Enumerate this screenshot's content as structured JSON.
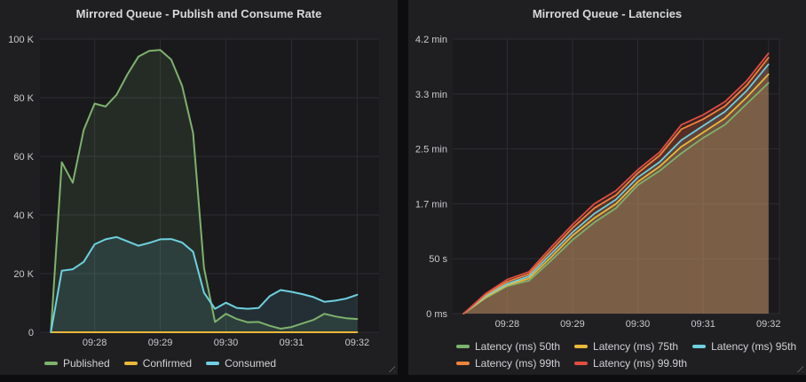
{
  "dashboard": {
    "panels": [
      {
        "title": "Mirrored Queue - Publish and Consume Rate"
      },
      {
        "title": "Mirrored Queue - Latencies"
      }
    ],
    "colors": {
      "green": "#7EB26D",
      "yellow": "#EAB839",
      "cyan": "#6ED0E0",
      "orange": "#EF843C",
      "red": "#E24D42",
      "panel_bg": "#1f1f22",
      "plot_bg": "#1a1a1d",
      "grid": "#2d2d32",
      "text": "#c9cacc"
    }
  },
  "chart_data": [
    {
      "type": "area",
      "title": "Mirrored Queue - Publish and Consume Rate",
      "xlabel": "",
      "ylabel": "",
      "unit": "messages/s",
      "legend_position": "bottom",
      "grid": true,
      "time_origin": "09:27:10",
      "time_domain_s": [
        0,
        310
      ],
      "x_tick_s": [
        50,
        110,
        170,
        230,
        290
      ],
      "x_tick_labels": [
        "09:28",
        "09:29",
        "09:30",
        "09:31",
        "09:32"
      ],
      "ylim": [
        0,
        100000
      ],
      "y_ticks": [
        {
          "v": 0,
          "label": "0"
        },
        {
          "v": 20000,
          "label": "20 K"
        },
        {
          "v": 40000,
          "label": "40 K"
        },
        {
          "v": 60000,
          "label": "60 K"
        },
        {
          "v": 80000,
          "label": "80 K"
        },
        {
          "v": 100000,
          "label": "100 K"
        }
      ],
      "sample_start_s": 10,
      "sample_interval_s": 10,
      "series": [
        {
          "name": "Published",
          "color": "#7EB26D",
          "values": [
            0,
            58000,
            51000,
            69000,
            78000,
            77000,
            81000,
            88000,
            94000,
            96000,
            96300,
            93000,
            84000,
            68000,
            22000,
            3500,
            6300,
            4500,
            3400,
            3500,
            2200,
            1200,
            1800,
            3000,
            4200,
            6300,
            5400,
            4800,
            4500
          ]
        },
        {
          "name": "Confirmed",
          "color": "#EAB839",
          "values": [
            0,
            0,
            0,
            0,
            0,
            0,
            0,
            0,
            0,
            0,
            0,
            0,
            0,
            0,
            0,
            0,
            0,
            0,
            0,
            0,
            0,
            0,
            0,
            0,
            0,
            0,
            0,
            0,
            0
          ]
        },
        {
          "name": "Consumed",
          "color": "#6ED0E0",
          "values": [
            0,
            21000,
            21500,
            24000,
            30000,
            31700,
            32500,
            31000,
            29500,
            30500,
            31700,
            31800,
            30600,
            27500,
            13500,
            8000,
            10100,
            8300,
            8000,
            8300,
            12300,
            14400,
            13800,
            13000,
            12000,
            10400,
            10800,
            11500,
            12800
          ]
        }
      ]
    },
    {
      "type": "area",
      "title": "Mirrored Queue - Latencies",
      "xlabel": "",
      "ylabel": "",
      "unit": "seconds",
      "legend_position": "bottom",
      "grid": true,
      "time_origin": "09:27:10",
      "time_domain_s": [
        0,
        300
      ],
      "x_tick_s": [
        50,
        110,
        170,
        230,
        290
      ],
      "x_tick_labels": [
        "09:28",
        "09:29",
        "09:30",
        "09:31",
        "09:32"
      ],
      "ylim": [
        0,
        250
      ],
      "y_ticks": [
        {
          "v": 0,
          "label": "0 ms"
        },
        {
          "v": 50,
          "label": "50 s"
        },
        {
          "v": 100,
          "label": "1.7 min"
        },
        {
          "v": 150,
          "label": "2.5 min"
        },
        {
          "v": 200,
          "label": "3.3 min"
        },
        {
          "v": 250,
          "label": "4.2 min"
        }
      ],
      "sample_start_s": 10,
      "sample_interval_s": 20,
      "series": [
        {
          "name": "Latency (ms) 50th",
          "color": "#7EB26D",
          "values": [
            0,
            14,
            25,
            30,
            48,
            67,
            83,
            96,
            117,
            130,
            146,
            160,
            172,
            191,
            210
          ]
        },
        {
          "name": "Latency (ms) 75th",
          "color": "#EAB839",
          "values": [
            0,
            15,
            26,
            32,
            51,
            71,
            87,
            100,
            120,
            134,
            152,
            165,
            178,
            197,
            218
          ]
        },
        {
          "name": "Latency (ms) 95th",
          "color": "#6ED0E0",
          "values": [
            0,
            16,
            27,
            34,
            54,
            74,
            91,
            104,
            124,
            138,
            158,
            171,
            184,
            203,
            227
          ]
        },
        {
          "name": "Latency (ms) 99th",
          "color": "#EF843C",
          "values": [
            0,
            17,
            29,
            36,
            57,
            78,
            96,
            108,
            128,
            144,
            168,
            177,
            189,
            208,
            233
          ]
        },
        {
          "name": "Latency (ms) 99.9th",
          "color": "#E24D42",
          "values": [
            0,
            18,
            31,
            38,
            60,
            81,
            100,
            112,
            131,
            147,
            172,
            181,
            193,
            212,
            237
          ]
        }
      ]
    }
  ]
}
